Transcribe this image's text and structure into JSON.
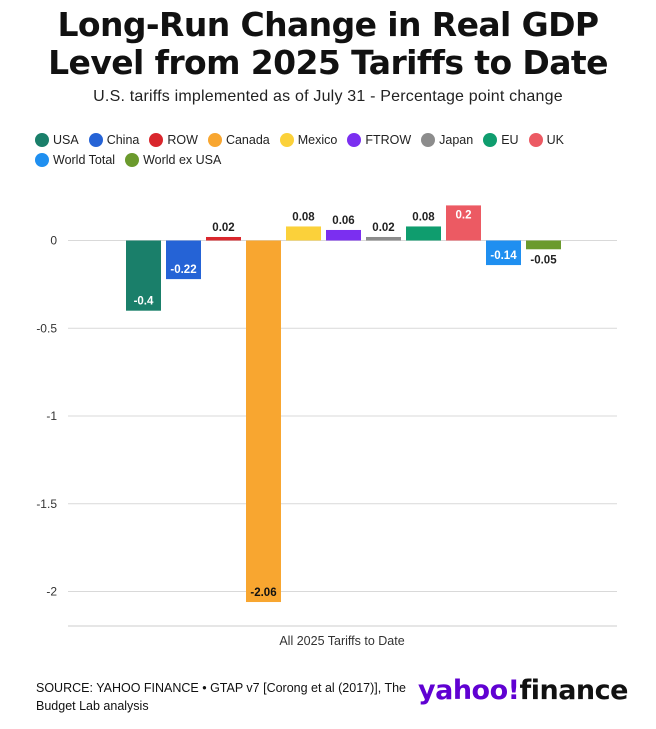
{
  "header": {
    "title_line1": "Long-Run Change in Real GDP",
    "title_line2": "Level from 2025 Tariffs to Date",
    "subtitle": "U.S. tariffs implemented as of July 31 - Percentage point change"
  },
  "chart_data": {
    "type": "bar",
    "title": "Long-Run Change in Real GDP Level from 2025 Tariffs to Date",
    "subtitle": "U.S. tariffs implemented as of July 31 - Percentage point change",
    "categories": [
      "All 2025 Tariffs to Date"
    ],
    "xlabel": "All 2025 Tariffs to Date",
    "ylabel": "",
    "ylim": [
      -2.2,
      0.2
    ],
    "yticks": [
      0,
      -0.5,
      -1,
      -1.5,
      -2
    ],
    "ytick_labels": [
      "0",
      "-0.5",
      "-1",
      "-1.5",
      "-2"
    ],
    "grid": true,
    "legend_position": "top",
    "series": [
      {
        "name": "USA",
        "values": [
          -0.4
        ],
        "label": "-0.4",
        "color": "#1a7f6a"
      },
      {
        "name": "China",
        "values": [
          -0.22
        ],
        "label": "-0.22",
        "color": "#2563d6"
      },
      {
        "name": "ROW",
        "values": [
          0.02
        ],
        "label": "0.02",
        "color": "#d9262c"
      },
      {
        "name": "Canada",
        "values": [
          -2.06
        ],
        "label": "-2.06",
        "color": "#f8a630"
      },
      {
        "name": "Mexico",
        "values": [
          0.08
        ],
        "label": "0.08",
        "color": "#fbd13a"
      },
      {
        "name": "FTROW",
        "values": [
          0.06
        ],
        "label": "0.06",
        "color": "#7b2ff0"
      },
      {
        "name": "Japan",
        "values": [
          0.02
        ],
        "label": "0.02",
        "color": "#8c8c8c"
      },
      {
        "name": "EU",
        "values": [
          0.08
        ],
        "label": "0.08",
        "color": "#0f9d6e"
      },
      {
        "name": "UK",
        "values": [
          0.2
        ],
        "label": "0.2",
        "color": "#ec5a63"
      },
      {
        "name": "World Total",
        "values": [
          -0.14
        ],
        "label": "-0.14",
        "color": "#1f8ff0"
      },
      {
        "name": "World ex USA",
        "values": [
          -0.05
        ],
        "label": "-0.05",
        "color": "#6b9a2d"
      }
    ]
  },
  "footer": {
    "source_line1": "SOURCE: YAHOO FINANCE • GTAP v7 [Corong et al (2017)], The",
    "source_line2": "Budget Lab analysis",
    "logo_main": "yahoo!",
    "logo_sub": "finance"
  }
}
